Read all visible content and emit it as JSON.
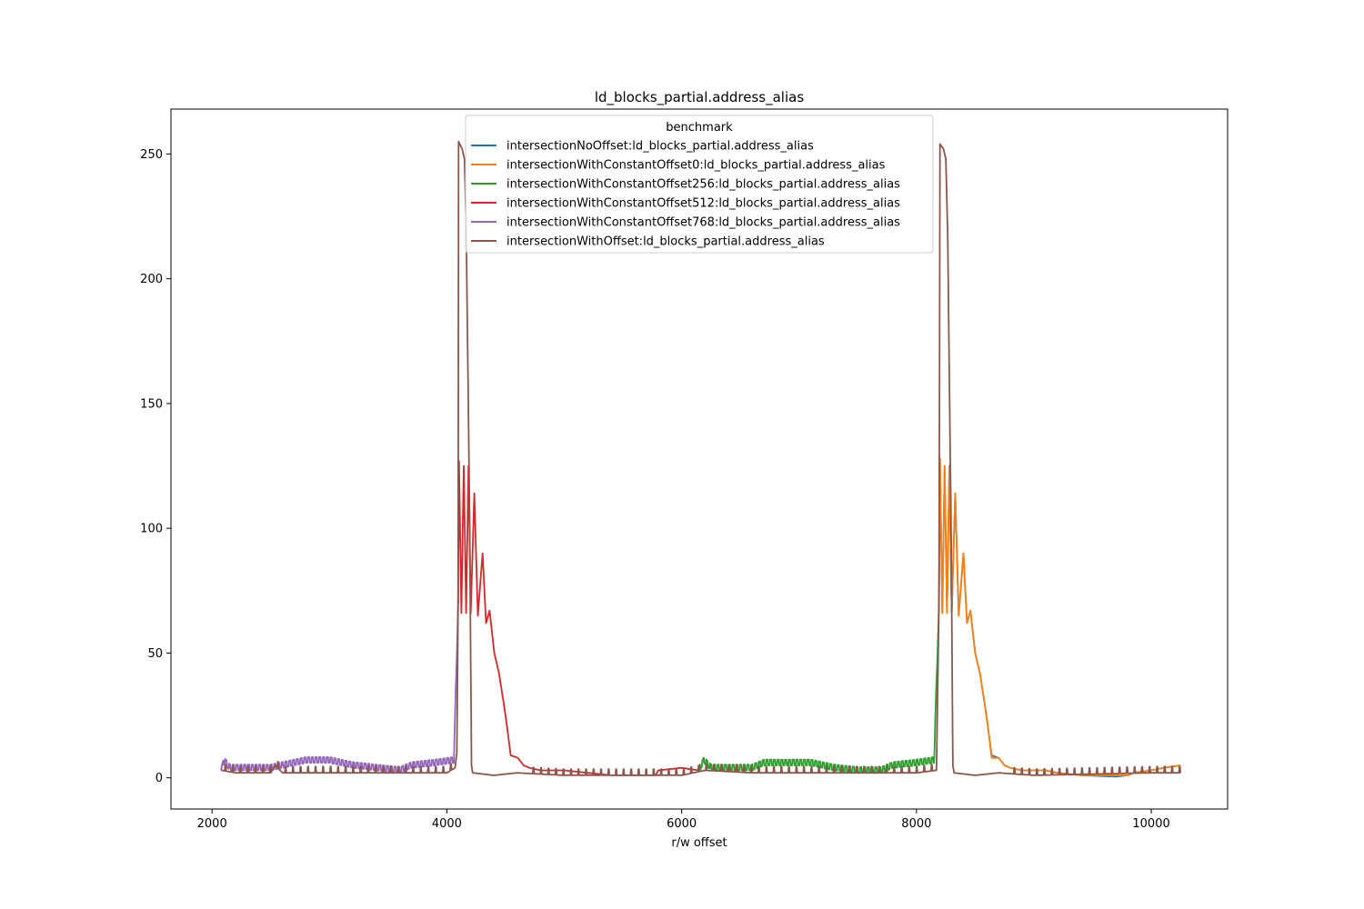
{
  "chart_data": {
    "type": "line",
    "title": "ld_blocks_partial.address_alias",
    "xlabel": "r/w offset",
    "ylabel": "",
    "xlim": [
      1650,
      10650
    ],
    "ylim": [
      -12.5,
      268
    ],
    "xticks": [
      2000,
      4000,
      6000,
      8000,
      10000
    ],
    "yticks": [
      0,
      50,
      100,
      150,
      200,
      250
    ],
    "grid": false,
    "legend": {
      "title": "benchmark",
      "position": "top-center"
    },
    "series": [
      {
        "name": "intersectionNoOffset:ld_blocks_partial.address_alias",
        "color": "#1f77b4",
        "pattern": "noOffset",
        "points": [
          [
            8192,
            70
          ],
          [
            8200,
            128
          ],
          [
            8220,
            66
          ],
          [
            8240,
            125
          ],
          [
            8260,
            66
          ],
          [
            8280,
            125
          ],
          [
            8300,
            66
          ],
          [
            8330,
            114
          ],
          [
            8360,
            65
          ],
          [
            8400,
            90
          ],
          [
            8430,
            62
          ],
          [
            8460,
            67
          ],
          [
            8500,
            50
          ],
          [
            8540,
            42
          ],
          [
            8580,
            30
          ],
          [
            8610,
            20
          ],
          [
            8640,
            9
          ],
          [
            8700,
            8
          ],
          [
            8750,
            5
          ],
          [
            8800,
            4
          ],
          [
            8900,
            3
          ],
          [
            9100,
            3
          ],
          [
            9200,
            2
          ],
          [
            9400,
            1
          ],
          [
            9700,
            0.5
          ],
          [
            9800,
            1
          ],
          [
            9850,
            2
          ],
          [
            10000,
            3
          ],
          [
            10100,
            4
          ],
          [
            10250,
            5
          ]
        ]
      },
      {
        "name": "intersectionWithConstantOffset0:ld_blocks_partial.address_alias",
        "color": "#ff7f0e",
        "pattern": "offset0",
        "points": [
          [
            8192,
            70
          ],
          [
            8200,
            128
          ],
          [
            8220,
            66
          ],
          [
            8240,
            125
          ],
          [
            8260,
            66
          ],
          [
            8280,
            125
          ],
          [
            8300,
            66
          ],
          [
            8330,
            114
          ],
          [
            8360,
            65
          ],
          [
            8400,
            90
          ],
          [
            8430,
            62
          ],
          [
            8460,
            67
          ],
          [
            8500,
            50
          ],
          [
            8540,
            42
          ],
          [
            8580,
            30
          ],
          [
            8610,
            20
          ],
          [
            8640,
            8
          ],
          [
            8700,
            8
          ],
          [
            8750,
            5
          ],
          [
            8800,
            4
          ],
          [
            8900,
            3
          ],
          [
            9100,
            3
          ],
          [
            9200,
            2
          ],
          [
            9400,
            1
          ],
          [
            9700,
            1
          ],
          [
            9800,
            1
          ],
          [
            9850,
            2
          ],
          [
            10000,
            3
          ],
          [
            10100,
            4
          ],
          [
            10250,
            5
          ]
        ]
      },
      {
        "name": "intersectionWithConstantOffset256:ld_blocks_partial.address_alias",
        "color": "#2ca02c",
        "pattern": "offset256",
        "points": [
          [
            6144,
            3
          ],
          [
            6190,
            7
          ],
          [
            6250,
            4
          ],
          [
            6400,
            4
          ],
          [
            6600,
            4
          ],
          [
            6700,
            6
          ],
          [
            6900,
            6
          ],
          [
            7100,
            6
          ],
          [
            7300,
            4
          ],
          [
            7500,
            3
          ],
          [
            7700,
            3
          ],
          [
            7800,
            5
          ],
          [
            8000,
            6
          ],
          [
            8150,
            7
          ],
          [
            8192,
            70
          ]
        ]
      },
      {
        "name": "intersectionWithConstantOffset512:ld_blocks_partial.address_alias",
        "color": "#d62728",
        "pattern": "offset512",
        "points": [
          [
            4096,
            70
          ],
          [
            4104,
            127
          ],
          [
            4124,
            66
          ],
          [
            4144,
            125
          ],
          [
            4164,
            66
          ],
          [
            4184,
            125
          ],
          [
            4204,
            66
          ],
          [
            4234,
            114
          ],
          [
            4264,
            65
          ],
          [
            4304,
            90
          ],
          [
            4334,
            62
          ],
          [
            4364,
            67
          ],
          [
            4404,
            50
          ],
          [
            4444,
            42
          ],
          [
            4484,
            30
          ],
          [
            4514,
            20
          ],
          [
            4544,
            9
          ],
          [
            4604,
            8
          ],
          [
            4654,
            5
          ],
          [
            4704,
            4
          ],
          [
            4800,
            3
          ],
          [
            5000,
            3
          ],
          [
            5200,
            2
          ],
          [
            5400,
            1
          ],
          [
            5700,
            1
          ],
          [
            5780,
            1
          ],
          [
            5800,
            3
          ],
          [
            6000,
            4
          ],
          [
            6144,
            3
          ]
        ]
      },
      {
        "name": "intersectionWithConstantOffset768:ld_blocks_partial.address_alias",
        "color": "#9467bd",
        "pattern": "offset768",
        "points": [
          [
            2080,
            3
          ],
          [
            2100,
            7
          ],
          [
            2150,
            4
          ],
          [
            2300,
            4
          ],
          [
            2500,
            4
          ],
          [
            2600,
            5
          ],
          [
            2800,
            7
          ],
          [
            3000,
            7
          ],
          [
            3200,
            5
          ],
          [
            3400,
            4
          ],
          [
            3600,
            3
          ],
          [
            3700,
            5
          ],
          [
            3900,
            6
          ],
          [
            4060,
            7
          ],
          [
            4096,
            70
          ]
        ]
      },
      {
        "name": "intersectionWithOffset:ld_blocks_partial.address_alias",
        "color": "#8c564b",
        "pattern": "withOffset",
        "points": [
          [
            2080,
            3
          ],
          [
            2200,
            2
          ],
          [
            2500,
            2
          ],
          [
            2540,
            5
          ],
          [
            2600,
            2
          ],
          [
            4000,
            2
          ],
          [
            4070,
            4
          ],
          [
            4085,
            10
          ],
          [
            4096,
            70
          ],
          [
            4100,
            255
          ],
          [
            4130,
            252
          ],
          [
            4150,
            248
          ],
          [
            4165,
            220
          ],
          [
            4180,
            160
          ],
          [
            4195,
            100
          ],
          [
            4210,
            5
          ],
          [
            4220,
            2
          ],
          [
            4400,
            1
          ],
          [
            4600,
            2
          ],
          [
            5000,
            1
          ],
          [
            6000,
            1
          ],
          [
            6200,
            3
          ],
          [
            6600,
            2
          ],
          [
            8000,
            2
          ],
          [
            8170,
            3
          ],
          [
            8192,
            70
          ],
          [
            8200,
            254
          ],
          [
            8230,
            252
          ],
          [
            8250,
            248
          ],
          [
            8265,
            220
          ],
          [
            8280,
            160
          ],
          [
            8295,
            100
          ],
          [
            8310,
            5
          ],
          [
            8320,
            2
          ],
          [
            8500,
            1
          ],
          [
            8700,
            2
          ],
          [
            9000,
            1
          ],
          [
            10000,
            2
          ],
          [
            10250,
            2
          ]
        ]
      }
    ]
  }
}
